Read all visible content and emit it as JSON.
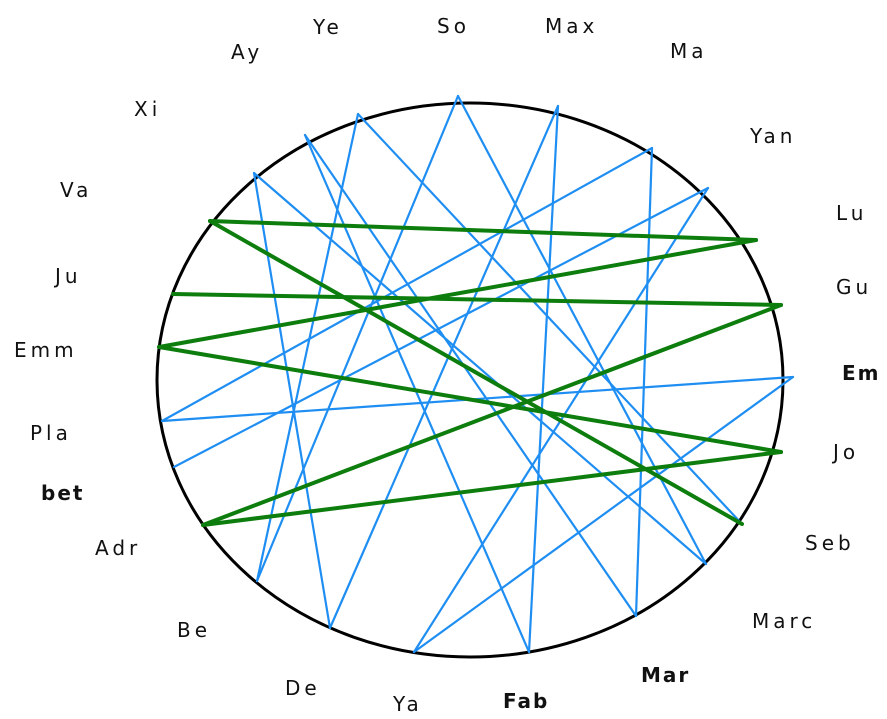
{
  "colors": {
    "background": "#ffffff",
    "circle": "#000000",
    "blue_edge": "#1f8ef2",
    "green_edge": "#0d7d0d",
    "label": "#111111"
  },
  "nodes": [
    {
      "id": "So",
      "label": "So",
      "bold": false
    },
    {
      "id": "Max",
      "label": "Max",
      "bold": false
    },
    {
      "id": "Ma",
      "label": "Ma",
      "bold": false
    },
    {
      "id": "Yan",
      "label": "Yan",
      "bold": false
    },
    {
      "id": "Lu",
      "label": "Lu",
      "bold": false
    },
    {
      "id": "Gu",
      "label": "Gu",
      "bold": false
    },
    {
      "id": "Em",
      "label": "Em",
      "bold": true
    },
    {
      "id": "Jo",
      "label": "Jo",
      "bold": false
    },
    {
      "id": "Seb",
      "label": "Seb",
      "bold": false
    },
    {
      "id": "Marc",
      "label": "Marc",
      "bold": false
    },
    {
      "id": "Mar",
      "label": "Mar",
      "bold": true
    },
    {
      "id": "Fab",
      "label": "Fab",
      "bold": true
    },
    {
      "id": "Ya",
      "label": "Ya",
      "bold": false
    },
    {
      "id": "De",
      "label": "De",
      "bold": false
    },
    {
      "id": "Be",
      "label": "Be",
      "bold": false
    },
    {
      "id": "Adr",
      "label": "Adr",
      "bold": false
    },
    {
      "id": "bet",
      "label": "bet",
      "bold": true
    },
    {
      "id": "Pla",
      "label": "Pla",
      "bold": false
    },
    {
      "id": "Emm",
      "label": "Emm",
      "bold": false
    },
    {
      "id": "Ju",
      "label": "Ju",
      "bold": false
    },
    {
      "id": "Va",
      "label": "Va",
      "bold": false
    },
    {
      "id": "Xi",
      "label": "Xi",
      "bold": false
    },
    {
      "id": "Ay",
      "label": "Ay",
      "bold": false
    },
    {
      "id": "Ye",
      "label": "Ye",
      "bold": false
    }
  ],
  "edges": [
    {
      "source": "Va",
      "target": "Lu",
      "type": "green"
    },
    {
      "source": "Va",
      "target": "Seb",
      "type": "green"
    },
    {
      "source": "Ju",
      "target": "Gu",
      "type": "green"
    },
    {
      "source": "Emm",
      "target": "Lu",
      "type": "green"
    },
    {
      "source": "Emm",
      "target": "Jo",
      "type": "green"
    },
    {
      "source": "Adr",
      "target": "Gu",
      "type": "green"
    },
    {
      "source": "Adr",
      "target": "Jo",
      "type": "green"
    },
    {
      "source": "So",
      "target": "Be",
      "type": "blue"
    },
    {
      "source": "So",
      "target": "Marc",
      "type": "blue"
    },
    {
      "source": "Max",
      "target": "De",
      "type": "blue"
    },
    {
      "source": "Max",
      "target": "Fab",
      "type": "blue"
    },
    {
      "source": "Ma",
      "target": "Pla",
      "type": "blue"
    },
    {
      "source": "Ma",
      "target": "Mar",
      "type": "blue"
    },
    {
      "source": "Yan",
      "target": "bet",
      "type": "blue"
    },
    {
      "source": "Yan",
      "target": "Ya",
      "type": "blue"
    },
    {
      "source": "Em",
      "target": "Ya",
      "type": "blue"
    },
    {
      "source": "Em",
      "target": "Pla",
      "type": "blue"
    },
    {
      "source": "Ye",
      "target": "Be",
      "type": "blue"
    },
    {
      "source": "Ye",
      "target": "Seb",
      "type": "blue"
    },
    {
      "source": "Ay",
      "target": "Mar",
      "type": "blue"
    },
    {
      "source": "Ay",
      "target": "Fab",
      "type": "blue"
    },
    {
      "source": "Xi",
      "target": "Marc",
      "type": "blue"
    },
    {
      "source": "Xi",
      "target": "De",
      "type": "blue"
    }
  ]
}
